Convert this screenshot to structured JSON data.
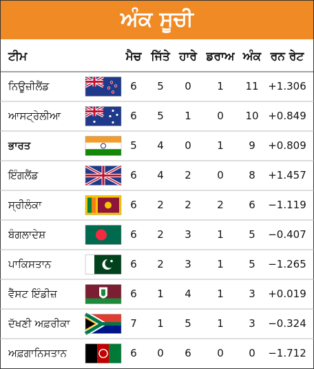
{
  "header": {
    "title": "ਅੰਕ ਸੂਚੀ"
  },
  "table": {
    "columns": [
      "ਟੀਮ",
      "ਮੈਚ",
      "ਜਿੱਤੇ",
      "ਹਾਰੇ",
      "ਡਰਾਅ",
      "ਅੰਕ",
      "ਰਨ ਰੇਟ"
    ],
    "rows": [
      [
        "ਨਿਊਜ਼ੀਲੈਂਡ",
        6,
        5,
        0,
        1,
        11,
        "+1.306"
      ],
      [
        "ਆਸਟ੍ਰੇਲੀਆ",
        6,
        5,
        1,
        0,
        10,
        "+0.849"
      ],
      [
        "ਭਾਰਤ",
        5,
        4,
        0,
        1,
        9,
        "+0.809"
      ],
      [
        "ਇੰਗਲੈਂਡ",
        6,
        4,
        2,
        0,
        8,
        "+1.457"
      ],
      [
        "ਸ੍ਰੀਲੰਕਾ",
        6,
        2,
        2,
        2,
        6,
        "−1.119"
      ],
      [
        "ਬੰਗਲਾਦੇਸ਼",
        6,
        2,
        3,
        1,
        5,
        "−0.407"
      ],
      [
        "ਪਾਕਿਸਤਾਨ",
        6,
        2,
        3,
        1,
        5,
        "−1.265"
      ],
      [
        "ਵੈੱਸਟ ਇੰਡੀਜ਼",
        6,
        1,
        4,
        1,
        3,
        "+0.019"
      ],
      [
        "ਦੱਖਣੀ ਅਫ਼ਰੀਕਾ",
        7,
        1,
        5,
        1,
        3,
        "−0.324"
      ],
      [
        "ਅਫ਼ਗਾਨਿਸਤਾਨ",
        6,
        0,
        6,
        0,
        0,
        "−1.712"
      ]
    ]
  }
}
